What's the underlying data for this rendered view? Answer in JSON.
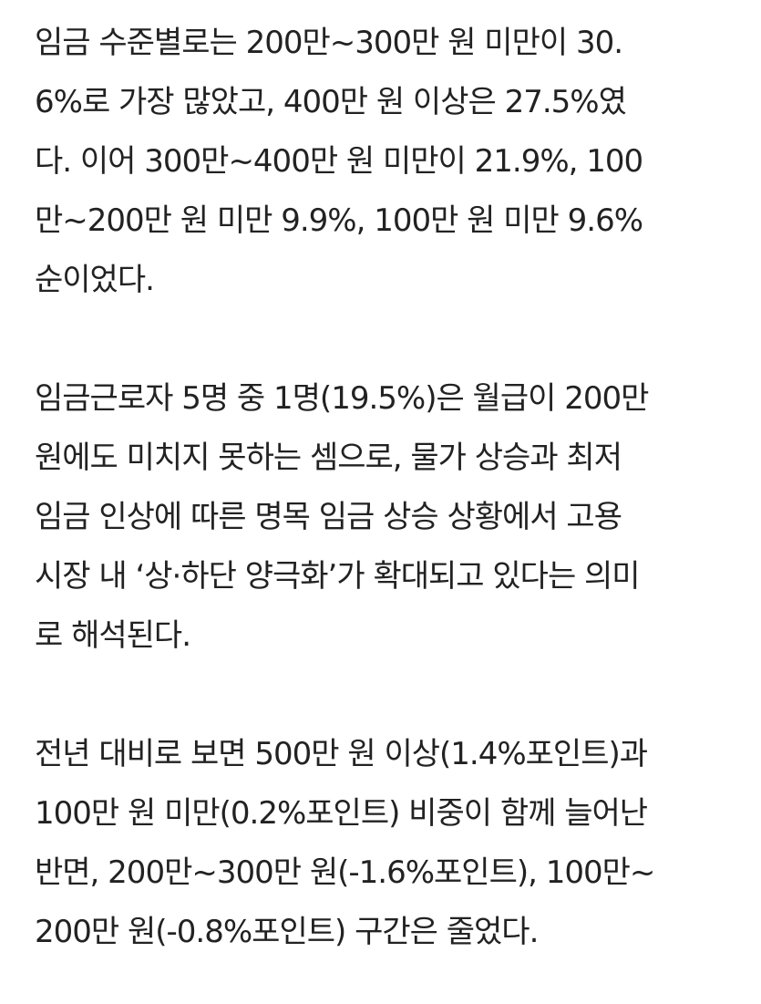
{
  "article": {
    "paragraphs": [
      {
        "lines": [
          "임금 수준별로는 200만~300만 원 미만이 30.",
          "6%로 가장 많았고, 400만 원 이상은 27.5%였",
          "다. 이어 300만~400만 원 미만이 21.9%, 100",
          "만~200만 원 미만 9.9%, 100만 원 미만 9.6%",
          "순이었다."
        ]
      },
      {
        "lines": [
          "임금근로자 5명 중 1명(19.5%)은 월급이 200만",
          "원에도 미치지 못하는 셈으로, 물가 상승과 최저",
          "임금 인상에 따른 명목 임금 상승 상황에서 고용",
          "시장 내 ‘상·하단 양극화’가 확대되고 있다는 의미",
          "로 해석된다."
        ]
      },
      {
        "lines": [
          "전년 대비로 보면 500만 원 이상(1.4%포인트)과",
          "100만 원 미만(0.2%포인트) 비중이 함께 늘어난",
          "반면, 200만~300만 원(-1.6%포인트), 100만~",
          "200만 원(-0.8%포인트) 구간은 줄었다."
        ]
      }
    ]
  }
}
